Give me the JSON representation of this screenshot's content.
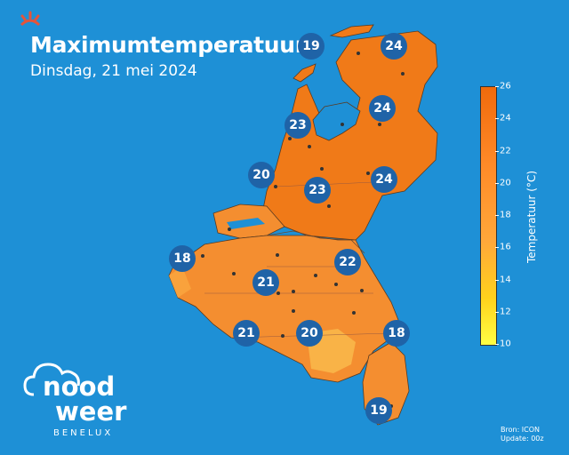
{
  "header": {
    "title": "Maximumtemperatuur",
    "subtitle": "Dinsdag, 21 mei 2024"
  },
  "colors": {
    "background": "#1e90d6",
    "badge": "#1f63a7",
    "land_warm": "#f07a18",
    "land_mid": "#f48e30",
    "land_cool": "#f9b347"
  },
  "map_labels": [
    {
      "id": "den-helder",
      "value": "19"
    },
    {
      "id": "groningen",
      "value": "24"
    },
    {
      "id": "zwolle",
      "value": "24"
    },
    {
      "id": "amsterdam",
      "value": "23"
    },
    {
      "id": "rotterdam",
      "value": "20"
    },
    {
      "id": "utrecht",
      "value": "23"
    },
    {
      "id": "twente",
      "value": "24"
    },
    {
      "id": "brugge",
      "value": "18"
    },
    {
      "id": "antwerpen",
      "value": "22"
    },
    {
      "id": "brussel",
      "value": "21"
    },
    {
      "id": "mons",
      "value": "21"
    },
    {
      "id": "namen",
      "value": "20"
    },
    {
      "id": "luik-oost",
      "value": "18"
    },
    {
      "id": "luxemburg",
      "value": "19"
    }
  ],
  "legend": {
    "label": "Temperatuur (°C)",
    "ticks": [
      "10",
      "12",
      "14",
      "16",
      "18",
      "20",
      "22",
      "24",
      "26"
    ],
    "min": 10,
    "max": 26
  },
  "source": {
    "line1": "Bron: ICON",
    "line2": "Update: 00z"
  },
  "logo": {
    "word1": "nood",
    "word2": "weer",
    "sub": "BENELUX"
  }
}
